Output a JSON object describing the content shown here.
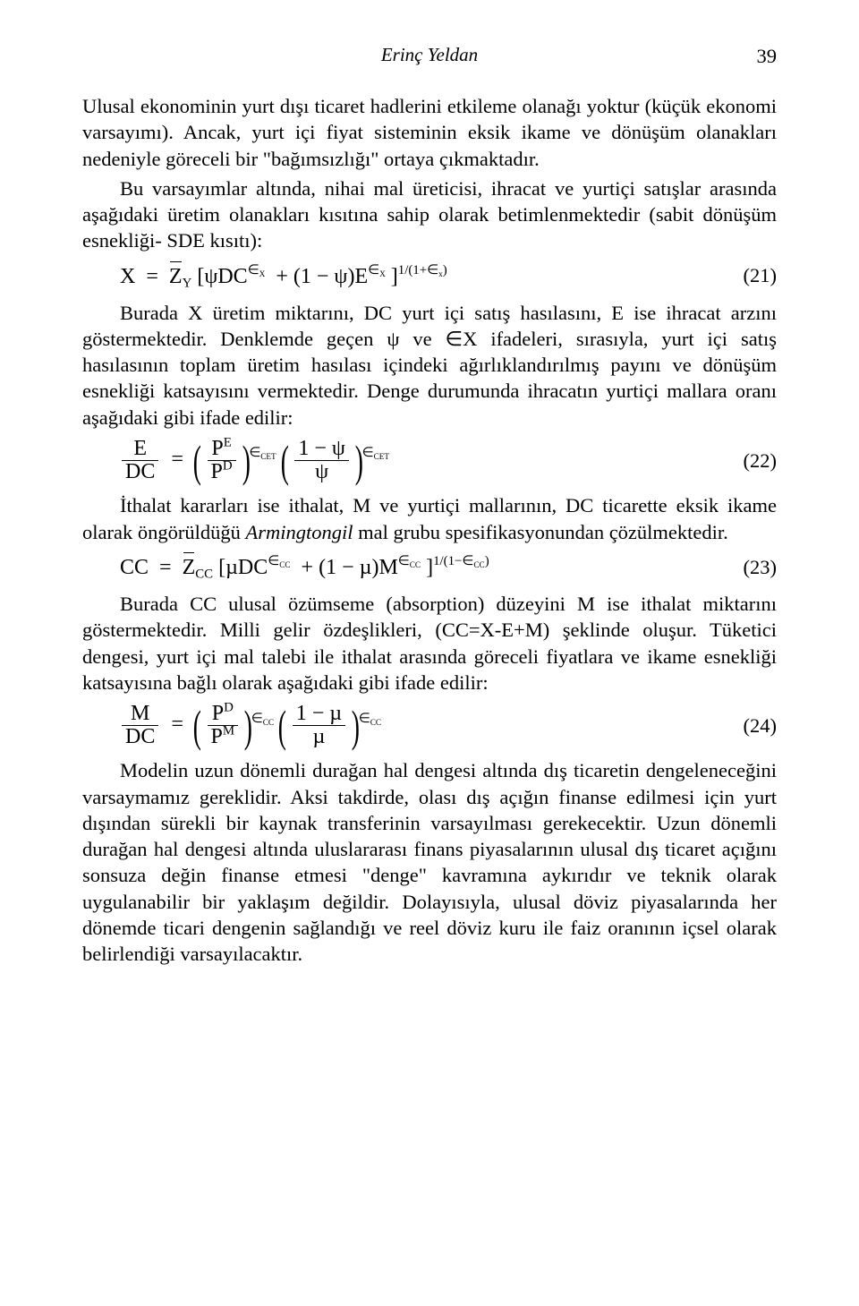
{
  "page_meta": {
    "author_header": "Erinç Yeldan",
    "page_number": "39"
  },
  "typography": {
    "body_font_family": "Times New Roman",
    "body_font_size_pt": 11.5,
    "equation_font_size_pt": 12.5,
    "line_height": 1.3,
    "text_color": "#000000",
    "background_color": "#ffffff"
  },
  "paragraphs": {
    "p1a": "Ulusal ekonominin yurt dışı ticaret hadlerini etkileme olanağı yoktur (küçük ekonomi varsayımı). Ancak, yurt içi fiyat sisteminin eksik ikame ve dönüşüm olanakları nedeniyle göreceli bir \"bağımsızlığı\" ortaya çıkmaktadır.",
    "p2": "Bu varsayımlar altında, nihai mal üreticisi, ihracat ve yurtiçi satışlar arasında aşağıdaki üretim olanakları kısıtına sahip olarak betimlenmektedir (sabit dönüşüm esnekliği- SDE kısıtı):",
    "p3": "Burada X üretim miktarını, DC yurt içi satış hasılasını, E ise ihracat arzını göstermektedir. Denklemde geçen ψ ve ∈X ifadeleri, sırasıyla, yurt içi satış hasılasının toplam üretim hasılası içindeki ağırlıklandırılmış payını ve dönüşüm esnekliği katsayısını vermektedir. Denge durumunda ihracatın yurtiçi mallara oranı aşağıdaki gibi ifade edilir:",
    "p4a": "İthalat kararları ise ithalat, M ve yurtiçi mallarının, DC ticarette eksik ikame olarak öngörüldüğü ",
    "p4_italic": "Armingtongil",
    "p4b": " mal grubu spesifikasyonundan çözülmektedir.",
    "p5": "Burada CC ulusal özümseme (absorption) düzeyini M ise ithalat miktarını göstermektedir. Milli gelir özdeşlikleri, (CC=X-E+M) şeklinde oluşur. Tüketici dengesi, yurt içi mal talebi ile ithalat arasında göreceli fiyatlara ve ikame esnekliği katsayısına bağlı olarak aşağıdaki gibi ifade edilir:",
    "p6": "Modelin uzun dönemli durağan hal dengesi altında dış ticaretin dengeleneceğini varsaymamız gereklidir. Aksi takdirde, olası dış açığın finanse edilmesi için yurt dışından sürekli bir kaynak transferinin varsayılması gerekecektir. Uzun dönemli durağan hal dengesi altında uluslararası finans piyasalarının ulusal dış ticaret açığını sonsuza değin finanse etmesi \"denge\" kavramına aykırıdır ve teknik olarak uygulanabilir bir yaklaşım değildir. Dolayısıyla, ulusal döviz piyasalarında her dönemde ticari dengenin sağlandığı ve reel döviz kuru ile faiz oranının içsel olarak belirlendiği varsayılacaktır."
  },
  "equations": {
    "eq21": {
      "number": "(21)",
      "vars": {
        "X": "X",
        "Z": "Z",
        "Y_sub": "Y",
        "psi": "ψ",
        "DC": "DC",
        "E": "E",
        "eps": "∈",
        "Xsub": "X",
        "xsub": "x",
        "one": "1"
      }
    },
    "eq22": {
      "number": "(22)",
      "vars": {
        "E": "E",
        "DC": "DC",
        "P": "P",
        "Esup": "E",
        "Dsup": "D",
        "psi": "ψ",
        "one": "1",
        "eps": "∈",
        "CET": "CET"
      }
    },
    "eq23": {
      "number": "(23)",
      "vars": {
        "CC": "CC",
        "Z": "Z",
        "CCsub": "CC",
        "mu": "µ",
        "DC": "DC",
        "M": "M",
        "eps": "∈",
        "one": "1"
      }
    },
    "eq24": {
      "number": "(24)",
      "vars": {
        "M": "M",
        "DC": "DC",
        "P": "P",
        "Dsup": "D",
        "Msup": "M",
        "mu": "µ",
        "one": "1",
        "eps": "∈",
        "CC": "CC"
      }
    }
  }
}
